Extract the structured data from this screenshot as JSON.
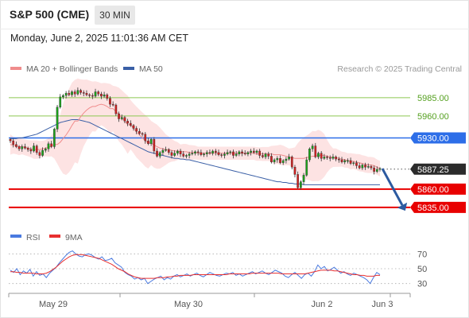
{
  "header": {
    "title": "S&P 500 (CME)",
    "interval": "30 MIN",
    "timestamp": "Monday, June 2, 2025 11:01:36 AM CET"
  },
  "legend": {
    "ma20": "MA 20 + Bollinger Bands",
    "ma50": "MA 50",
    "rsi": "RSI",
    "rsi_ma": "9MA"
  },
  "copyright": "Research © 2025 Trading Central",
  "colors": {
    "ma20": "#f08c8c",
    "ma50": "#3a5fa6",
    "band": "#fde0e0",
    "resistance_green": "#8cc850",
    "level_blue": "#2d6ee8",
    "level_red": "#e80000",
    "candle_up": "#1aa31a",
    "candle_down": "#d22020",
    "rsi": "#4a7ae0",
    "rsi_ma": "#e83030",
    "arrow": "#2c5aa0"
  },
  "chart_data": [
    {
      "type": "line",
      "title": "S&P 500 (CME) 30 MIN",
      "ylim": [
        5812,
        6012
      ],
      "x_ticks": [
        "May 29",
        "May 30",
        "Jun 2",
        "Jun 3"
      ],
      "levels": [
        {
          "value": 5985.0,
          "label": "5985.00",
          "style": "resistance"
        },
        {
          "value": 5960.0,
          "label": "5960.00",
          "style": "resistance"
        },
        {
          "value": 5930.0,
          "label": "5930.00",
          "style": "pivot"
        },
        {
          "value": 5887.25,
          "label": "5887.25",
          "style": "last"
        },
        {
          "value": 5860.0,
          "label": "5860.00",
          "style": "support"
        },
        {
          "value": 5835.0,
          "label": "5835.00",
          "style": "support"
        }
      ],
      "close": [
        5926,
        5921,
        5918,
        5915,
        5918,
        5916,
        5914,
        5912,
        5919,
        5910,
        5906,
        5913,
        5915,
        5922,
        5918,
        5942,
        5972,
        5986,
        5988,
        5991,
        5989,
        5993,
        5990,
        5995,
        5992,
        5991,
        5989,
        5988,
        5987,
        5993,
        5990,
        5987,
        5989,
        5984,
        5976,
        5975,
        5963,
        5956,
        5958,
        5953,
        5950,
        5947,
        5943,
        5939,
        5936,
        5935,
        5926,
        5922,
        5928,
        5912,
        5905,
        5910,
        5913,
        5914,
        5910,
        5906,
        5909,
        5912,
        5908,
        5905,
        5906,
        5908,
        5909,
        5911,
        5910,
        5907,
        5908,
        5910,
        5909,
        5912,
        5910,
        5907,
        5906,
        5908,
        5910,
        5911,
        5906,
        5908,
        5911,
        5909,
        5908,
        5910,
        5912,
        5910,
        5912,
        5906,
        5904,
        5908,
        5905,
        5897,
        5900,
        5902,
        5896,
        5899,
        5901,
        5904,
        5890,
        5880,
        5862,
        5870,
        5879,
        5900,
        5915,
        5919,
        5904,
        5909,
        5902,
        5904,
        5903,
        5902,
        5904,
        5901,
        5900,
        5897,
        5899,
        5899,
        5895,
        5896,
        5892,
        5889,
        5893,
        5890,
        5891,
        5889,
        5884,
        5887,
        5888
      ],
      "ma20": [
        5921,
        5920,
        5919,
        5918,
        5917,
        5916,
        5915,
        5914,
        5914,
        5915,
        5916,
        5917,
        5919,
        5921,
        5924,
        5929,
        5934,
        5940,
        5947,
        5953,
        5959,
        5964,
        5968,
        5971,
        5973,
        5975,
        5976,
        5975,
        5973,
        5970,
        5966,
        5962,
        5958,
        5953,
        5948,
        5943,
        5938,
        5934,
        5930,
        5926,
        5923,
        5920,
        5918,
        5916,
        5915,
        5914,
        5913,
        5912,
        5912,
        5911,
        5911,
        5910,
        5910,
        5910,
        5909,
        5909,
        5909,
        5909,
        5909,
        5909,
        5909,
        5909,
        5909,
        5909,
        5909,
        5909,
        5909,
        5909,
        5909,
        5909,
        5909,
        5908,
        5908,
        5908,
        5908,
        5908,
        5907,
        5907,
        5906,
        5905,
        5904,
        5903,
        5902,
        5902,
        5902,
        5903,
        5904,
        5905,
        5906,
        5906,
        5906,
        5905,
        5904,
        5903,
        5902,
        5901,
        5900,
        5899,
        5898,
        5897,
        5896,
        5895,
        5894,
        5893,
        5892,
        5890,
        5888
      ],
      "ma50": [
        5929,
        5929,
        5929,
        5930,
        5930,
        5931,
        5932,
        5933,
        5934,
        5935,
        5937,
        5939,
        5941,
        5943,
        5945,
        5947,
        5949,
        5951,
        5952,
        5953,
        5954,
        5955,
        5955,
        5955,
        5954,
        5953,
        5952,
        5951,
        5949,
        5947,
        5945,
        5943,
        5941,
        5939,
        5937,
        5935,
        5933,
        5931,
        5929,
        5927,
        5925,
        5923,
        5921,
        5919,
        5917,
        5915,
        5913,
        5911,
        5910,
        5909,
        5908,
        5907,
        5906,
        5905,
        5904,
        5903,
        5902,
        5902,
        5901,
        5901,
        5900,
        5900,
        5899,
        5898,
        5897,
        5896,
        5895,
        5894,
        5893,
        5892,
        5891,
        5890,
        5889,
        5888,
        5887,
        5886,
        5885,
        5884,
        5883,
        5882,
        5881,
        5880,
        5879,
        5878,
        5877,
        5876,
        5875,
        5874,
        5873,
        5872,
        5871,
        5870,
        5870,
        5869,
        5869,
        5868,
        5868,
        5867,
        5867,
        5867,
        5866,
        5866,
        5866,
        5866,
        5866,
        5866,
        5866,
        5866,
        5866,
        5866,
        5866,
        5866,
        5866,
        5866,
        5866,
        5866,
        5866,
        5866,
        5866,
        5866,
        5866,
        5866,
        5866,
        5866,
        5866,
        5866,
        5866
      ]
    },
    {
      "type": "line",
      "title": "RSI",
      "ylim": [
        20,
        80
      ],
      "y_ticks": [
        70,
        50,
        30
      ],
      "series": [
        {
          "name": "RSI",
          "values": [
            48,
            45,
            50,
            42,
            47,
            44,
            49,
            40,
            46,
            41,
            43,
            38,
            44,
            48,
            52,
            58,
            63,
            68,
            72,
            74,
            70,
            67,
            66,
            69,
            70,
            68,
            65,
            63,
            66,
            61,
            62,
            64,
            58,
            55,
            52,
            45,
            42,
            40,
            36,
            38,
            35,
            37,
            30,
            33,
            36,
            38,
            40,
            35,
            38,
            36,
            40,
            42,
            39,
            41,
            43,
            40,
            42,
            44,
            41,
            39,
            42,
            45,
            43,
            41,
            40,
            42,
            44,
            43,
            45,
            41,
            43,
            40,
            42,
            44,
            46,
            43,
            45,
            47,
            44,
            42,
            45,
            48,
            46,
            44,
            40,
            38,
            42,
            45,
            41,
            37,
            42,
            44,
            40,
            46,
            55,
            50,
            53,
            47,
            49,
            52,
            48,
            44,
            46,
            43,
            41,
            44,
            42,
            40,
            38,
            35,
            30,
            38,
            45,
            42
          ]
        },
        {
          "name": "9MA",
          "values": [
            46,
            46,
            45,
            45,
            44,
            44,
            44,
            44,
            43,
            43,
            43,
            44,
            46,
            49,
            52,
            56,
            60,
            63,
            66,
            68,
            69,
            69,
            69,
            68,
            67,
            66,
            65,
            64,
            62,
            60,
            58,
            56,
            53,
            50,
            48,
            46,
            43,
            41,
            39,
            38,
            37,
            37,
            37,
            37,
            37,
            38,
            38,
            38,
            39,
            39,
            40,
            40,
            41,
            41,
            41,
            41,
            42,
            42,
            42,
            42,
            42,
            42,
            42,
            42,
            42,
            42,
            42,
            43,
            43,
            43,
            43,
            43,
            43,
            43,
            44,
            44,
            44,
            44,
            44,
            44,
            44,
            44,
            44,
            43,
            43,
            43,
            43,
            43,
            43,
            43,
            43,
            44,
            45,
            46,
            47,
            48,
            48,
            48,
            48,
            47,
            47,
            46,
            45,
            44,
            43,
            42,
            42,
            41,
            41,
            40,
            40,
            40,
            41,
            41
          ]
        }
      ]
    }
  ]
}
